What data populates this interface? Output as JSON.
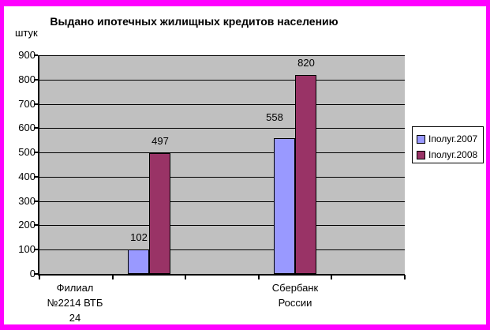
{
  "window": {
    "frame_color": "#FF00FF",
    "background": "#FFFFFF"
  },
  "chart_data": {
    "type": "bar",
    "title": "Выдано ипотечных жилищных кредитов населению",
    "ylabel": "штук",
    "xlabel": "",
    "categories": [
      [
        "Филиал",
        "№2214 ВТБ",
        "24"
      ],
      [
        "Сбербанк",
        "России"
      ]
    ],
    "series": [
      {
        "name": "Iполуг.2007",
        "color": "#9999FF",
        "values": [
          102,
          558
        ],
        "label_offsets": [
          [
            0,
            0
          ],
          [
            -13,
            -11
          ]
        ]
      },
      {
        "name": "Iполуг.2008",
        "color": "#993366",
        "values": [
          497,
          820
        ],
        "label_offsets": [
          [
            0,
            0
          ],
          [
            0,
            0
          ]
        ]
      }
    ],
    "ylim": [
      0,
      900
    ],
    "ytick_interval": 100,
    "grid": true,
    "legend_position": "right",
    "plot_background": "#C0C0C0",
    "gridline_color": "#000000"
  }
}
